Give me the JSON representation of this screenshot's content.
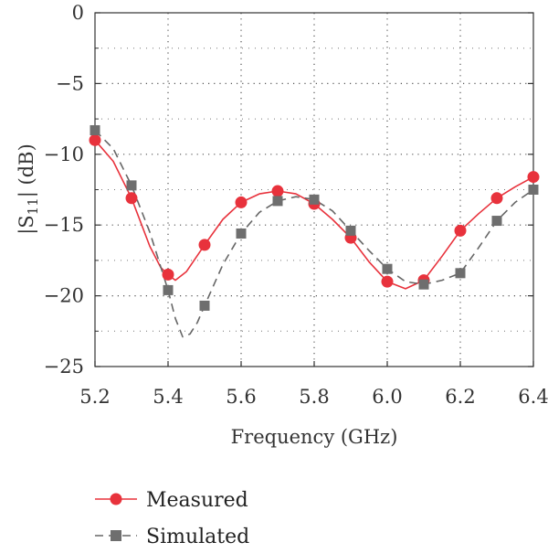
{
  "chart_data": {
    "type": "line",
    "xlabel": "Frequency (GHz)",
    "ylabel": "|S11| (dB)",
    "xlim": [
      5.2,
      6.4
    ],
    "ylim": [
      -25,
      0
    ],
    "x_ticks": [
      "5.2",
      "5.4",
      "5.6",
      "5.8",
      "6.0",
      "6.2",
      "6.4"
    ],
    "y_ticks": [
      "0",
      "−5",
      "−10",
      "−15",
      "−20",
      "−25"
    ],
    "grid": "dotted",
    "legend_position": "bottom-left",
    "series": [
      {
        "name": "Measured",
        "color": "#e8323c",
        "line_style": "solid",
        "marker": "circle",
        "x": [
          5.2,
          5.3,
          5.4,
          5.5,
          5.6,
          5.7,
          5.8,
          5.9,
          6.0,
          6.1,
          6.2,
          6.3,
          6.4
        ],
        "values": [
          -9.0,
          -13.1,
          -18.5,
          -16.4,
          -13.4,
          -12.6,
          -13.5,
          -15.9,
          -19.0,
          -18.9,
          -15.4,
          -13.1,
          -11.6
        ],
        "curve_x": [
          5.2,
          5.25,
          5.3,
          5.35,
          5.38,
          5.4,
          5.42,
          5.45,
          5.5,
          5.55,
          5.6,
          5.65,
          5.7,
          5.75,
          5.8,
          5.85,
          5.9,
          5.95,
          6.0,
          6.05,
          6.1,
          6.15,
          6.2,
          6.25,
          6.3,
          6.35,
          6.4
        ],
        "curve_y": [
          -9.0,
          -10.5,
          -13.1,
          -16.5,
          -18.0,
          -18.5,
          -18.9,
          -18.3,
          -16.4,
          -14.6,
          -13.4,
          -12.8,
          -12.6,
          -12.8,
          -13.5,
          -14.6,
          -15.9,
          -17.6,
          -19.0,
          -19.5,
          -18.9,
          -17.2,
          -15.4,
          -14.2,
          -13.1,
          -12.3,
          -11.6
        ]
      },
      {
        "name": "Simulated",
        "color": "#666666",
        "line_style": "dashed",
        "marker": "square",
        "x": [
          5.2,
          5.3,
          5.4,
          5.5,
          5.6,
          5.7,
          5.8,
          5.9,
          6.0,
          6.1,
          6.2,
          6.3,
          6.4
        ],
        "values": [
          -8.3,
          -12.2,
          -19.6,
          -20.7,
          -15.6,
          -13.3,
          -13.2,
          -15.4,
          -18.1,
          -19.2,
          -18.4,
          -14.7,
          -12.5
        ],
        "curve_x": [
          5.2,
          5.25,
          5.3,
          5.35,
          5.4,
          5.42,
          5.44,
          5.46,
          5.48,
          5.5,
          5.55,
          5.6,
          5.65,
          5.7,
          5.75,
          5.8,
          5.85,
          5.9,
          5.95,
          6.0,
          6.05,
          6.1,
          6.15,
          6.2,
          6.25,
          6.3,
          6.35,
          6.4
        ],
        "curve_y": [
          -8.3,
          -9.6,
          -12.2,
          -15.5,
          -19.6,
          -21.6,
          -22.9,
          -22.7,
          -21.9,
          -20.7,
          -17.8,
          -15.6,
          -14.1,
          -13.3,
          -13.0,
          -13.2,
          -14.0,
          -15.4,
          -16.8,
          -18.1,
          -19.0,
          -19.2,
          -18.9,
          -18.4,
          -16.6,
          -14.7,
          -13.4,
          -12.5
        ]
      }
    ]
  }
}
